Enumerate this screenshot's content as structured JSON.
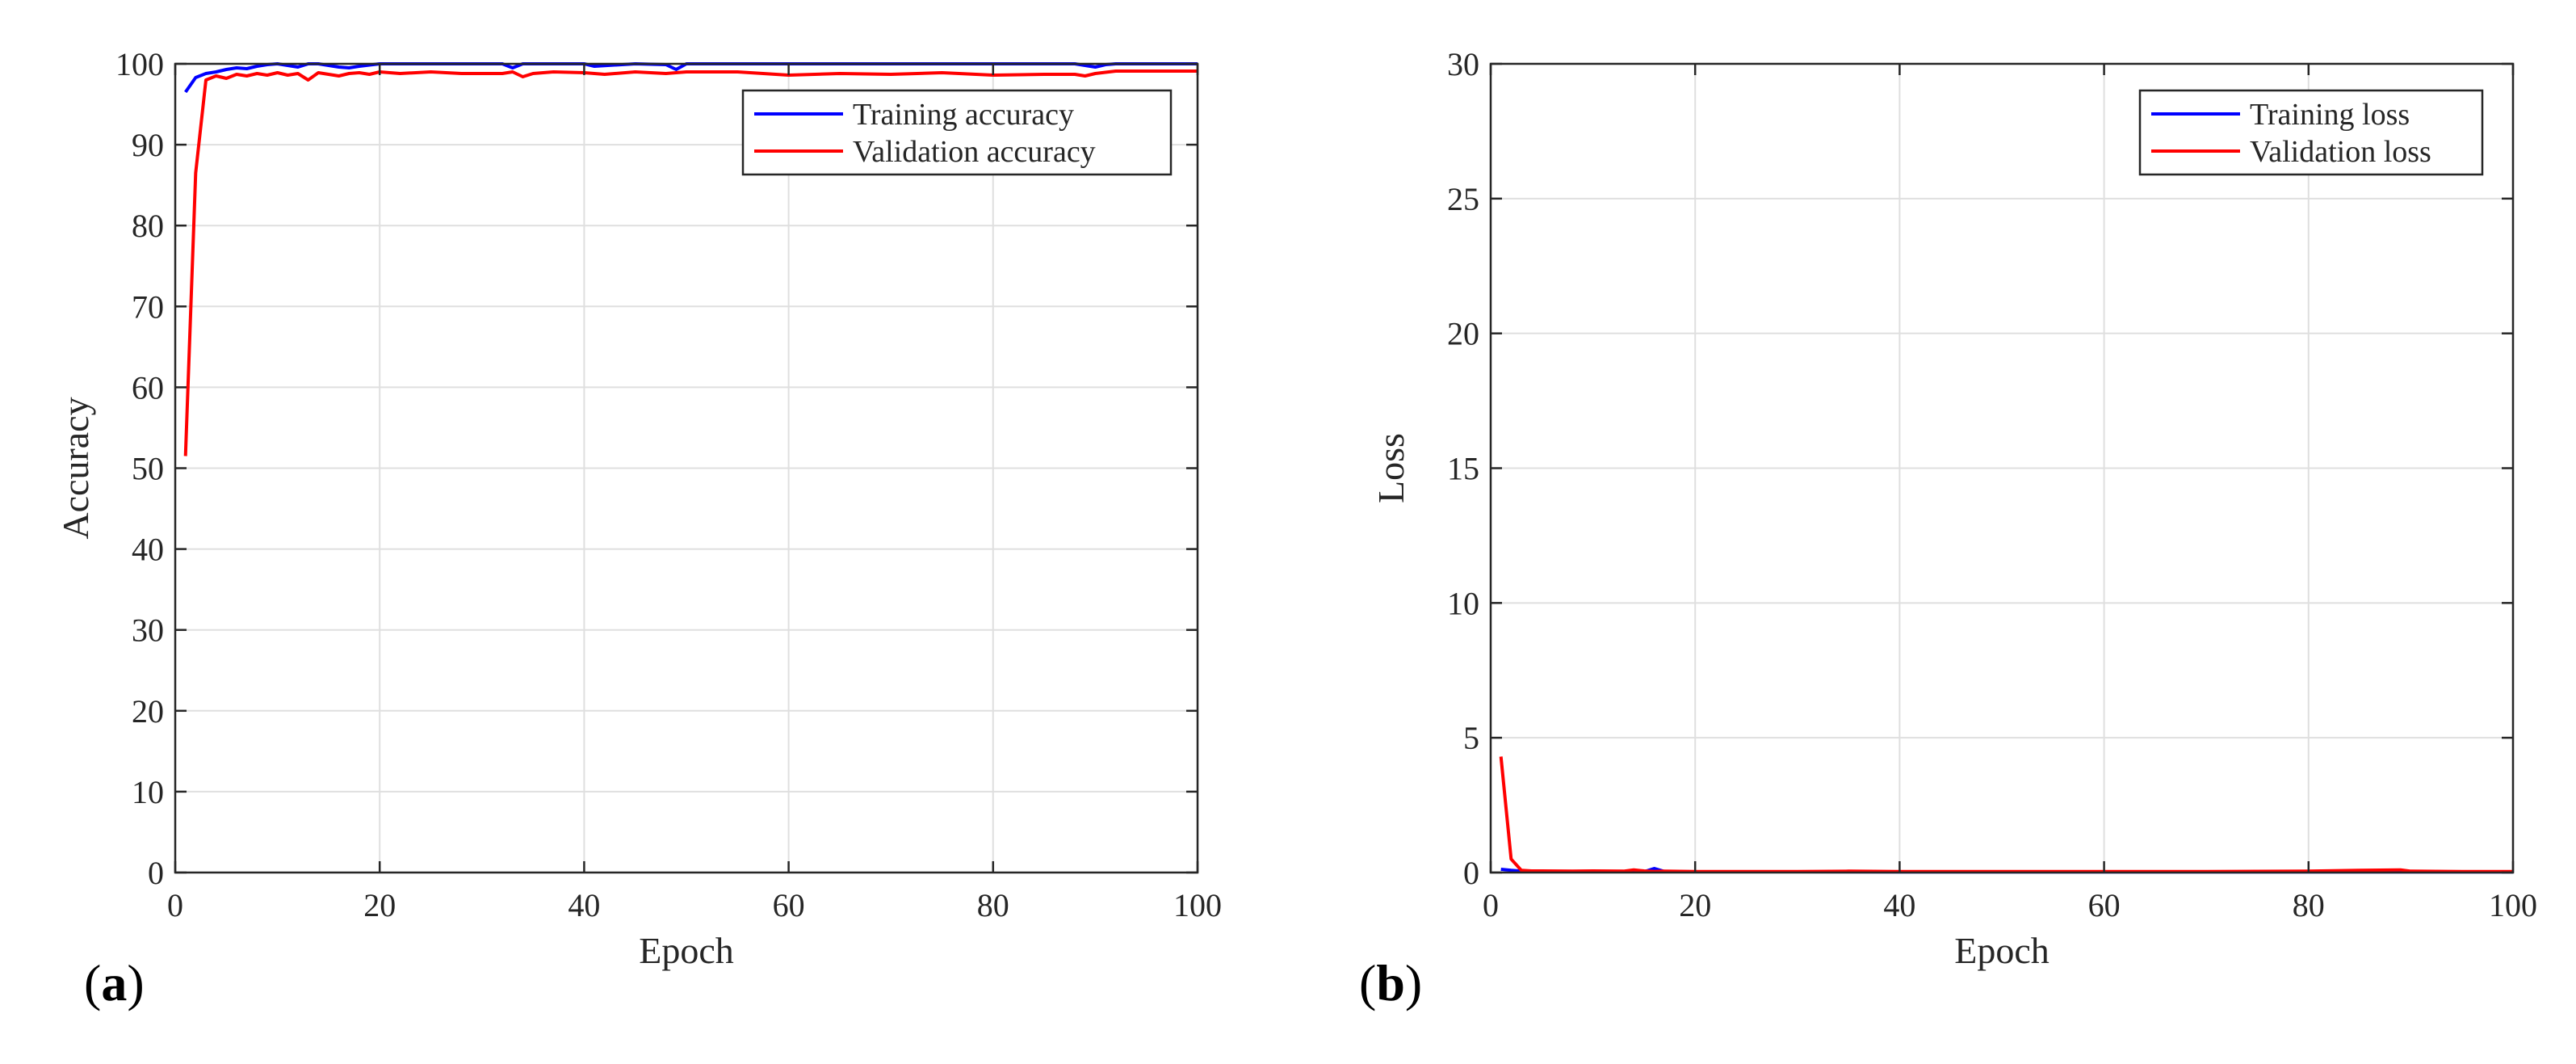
{
  "figure": {
    "panels": [
      {
        "label_open": "(",
        "label_letter": "a",
        "label_close": ")"
      },
      {
        "label_open": "(",
        "label_letter": "b",
        "label_close": ")"
      }
    ]
  },
  "chart_data": [
    {
      "type": "line",
      "title": "",
      "xlabel": "Epoch",
      "ylabel": "Accuracy",
      "xlim": [
        0,
        100
      ],
      "ylim": [
        0,
        100
      ],
      "xticks": [
        0,
        20,
        40,
        60,
        80,
        100
      ],
      "yticks": [
        0,
        10,
        20,
        30,
        40,
        50,
        60,
        70,
        80,
        90,
        100
      ],
      "grid": true,
      "legend_position": "top-right",
      "series": [
        {
          "name": "Training accuracy",
          "color": "#0000ff",
          "x": [
            1,
            2,
            3,
            4,
            5,
            6,
            7,
            8,
            9,
            10,
            12,
            13,
            14,
            15,
            16,
            17,
            18,
            20,
            25,
            30,
            32,
            33,
            34,
            35,
            40,
            41,
            45,
            48,
            49,
            50,
            55,
            60,
            70,
            80,
            88,
            89,
            90,
            91,
            92,
            100
          ],
          "y": [
            96.5,
            98.3,
            98.8,
            99.0,
            99.3,
            99.5,
            99.4,
            99.7,
            99.9,
            100,
            99.6,
            100,
            100,
            99.8,
            99.6,
            99.5,
            99.7,
            100,
            100,
            100,
            100,
            99.5,
            100,
            100,
            100,
            99.7,
            100,
            99.9,
            99.3,
            100,
            100,
            100,
            100,
            100,
            100,
            99.8,
            99.6,
            99.9,
            100,
            100
          ]
        },
        {
          "name": "Validation accuracy",
          "color": "#ff0000",
          "x": [
            1,
            2,
            3,
            4,
            5,
            6,
            7,
            8,
            9,
            10,
            11,
            12,
            13,
            14,
            15,
            16,
            17,
            18,
            19,
            20,
            22,
            25,
            28,
            30,
            32,
            33,
            34,
            35,
            37,
            40,
            42,
            45,
            48,
            50,
            55,
            60,
            65,
            70,
            75,
            80,
            85,
            88,
            89,
            90,
            92,
            100
          ],
          "y": [
            51.5,
            86.5,
            98.0,
            98.5,
            98.2,
            98.7,
            98.5,
            98.8,
            98.6,
            98.9,
            98.6,
            98.8,
            98.0,
            98.9,
            98.7,
            98.5,
            98.8,
            98.9,
            98.7,
            99.0,
            98.8,
            99.0,
            98.8,
            98.8,
            98.8,
            99.0,
            98.4,
            98.8,
            99.0,
            98.9,
            98.7,
            99.0,
            98.8,
            99.0,
            99.0,
            98.6,
            98.8,
            98.7,
            98.9,
            98.6,
            98.7,
            98.7,
            98.5,
            98.8,
            99.1,
            99.1
          ]
        }
      ]
    },
    {
      "type": "line",
      "title": "",
      "xlabel": "Epoch",
      "ylabel": "Loss",
      "xlim": [
        0,
        100
      ],
      "ylim": [
        0,
        30
      ],
      "xticks": [
        0,
        20,
        40,
        60,
        80,
        100
      ],
      "yticks": [
        0,
        5,
        10,
        15,
        20,
        25,
        30
      ],
      "grid": true,
      "legend_position": "top-right",
      "series": [
        {
          "name": "Training loss",
          "color": "#0000ff",
          "x": [
            1,
            2,
            3,
            5,
            10,
            15,
            16,
            17,
            20,
            30,
            40,
            50,
            60,
            70,
            80,
            90,
            100
          ],
          "y": [
            0.12,
            0.08,
            0.05,
            0.04,
            0.03,
            0.03,
            0.15,
            0.04,
            0.03,
            0.03,
            0.02,
            0.02,
            0.02,
            0.02,
            0.02,
            0.02,
            0.02
          ]
        },
        {
          "name": "Validation loss",
          "color": "#ff0000",
          "x": [
            1,
            2,
            3,
            4,
            5,
            8,
            10,
            13,
            14,
            15,
            16,
            17,
            20,
            30,
            35,
            40,
            50,
            60,
            70,
            80,
            85,
            89,
            90,
            95,
            100
          ],
          "y": [
            4.3,
            0.5,
            0.08,
            0.06,
            0.06,
            0.05,
            0.06,
            0.05,
            0.1,
            0.06,
            0.04,
            0.05,
            0.04,
            0.04,
            0.05,
            0.04,
            0.04,
            0.04,
            0.04,
            0.05,
            0.08,
            0.1,
            0.05,
            0.04,
            0.04
          ]
        }
      ]
    }
  ]
}
